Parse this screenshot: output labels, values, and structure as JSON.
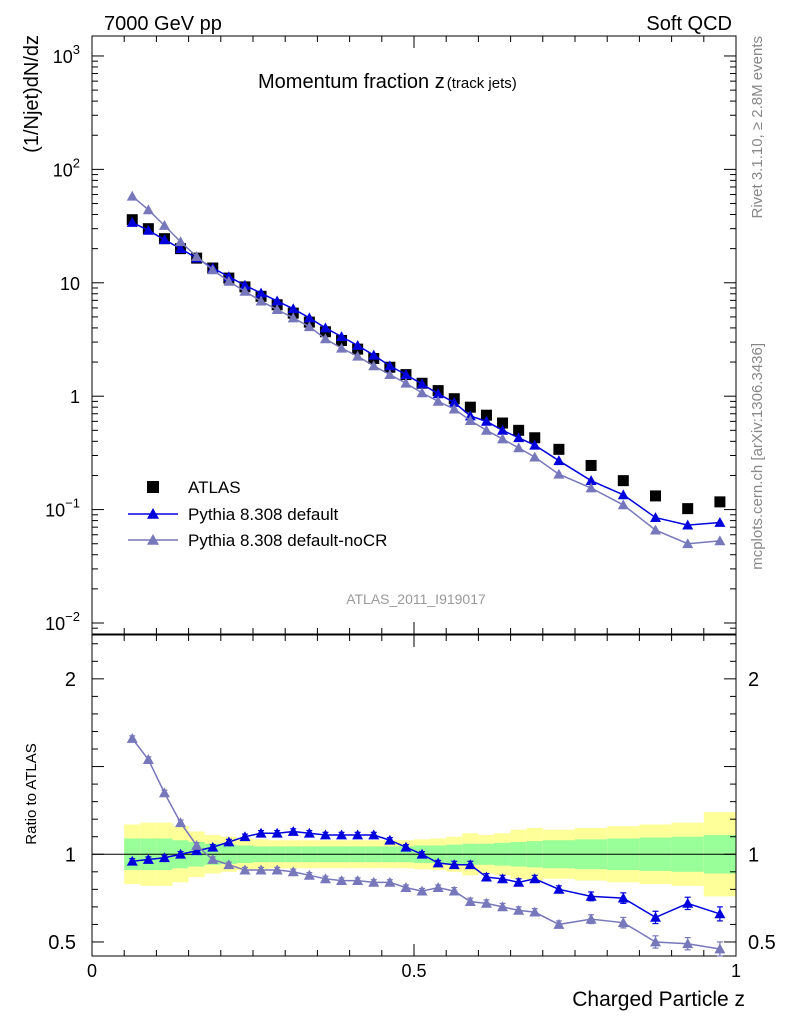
{
  "header": {
    "left": "7000 GeV pp",
    "right": "Soft QCD"
  },
  "side": {
    "top": "Rivet 3.1.10, ≥ 2.8M events",
    "bottom": "mcplots.cern.ch [arXiv:1306.3436]"
  },
  "analysis_tag": "ATLAS_2011_I919017",
  "chart_data": [
    {
      "type": "scatter",
      "panel": "main",
      "title": "Momentum fraction z",
      "title_sub": "(track jets)",
      "ylabel": "(1/Njet)dN/dz",
      "xlabel": "",
      "log_y": true,
      "xlim": [
        0,
        1
      ],
      "ylim": [
        0.008,
        1500
      ],
      "y_ticks": [
        {
          "v": 0.01,
          "base": "10",
          "exp": "−2"
        },
        {
          "v": 0.1,
          "base": "10",
          "exp": "−1"
        },
        {
          "v": 1,
          "base": "1",
          "exp": ""
        },
        {
          "v": 10,
          "base": "10",
          "exp": ""
        },
        {
          "v": 100,
          "base": "10",
          "exp": "2"
        },
        {
          "v": 1000,
          "base": "10",
          "exp": "3"
        }
      ],
      "legend": {
        "position": "lower-left"
      },
      "x": [
        0.0625,
        0.0875,
        0.1125,
        0.1375,
        0.1625,
        0.1875,
        0.2125,
        0.2375,
        0.2625,
        0.2875,
        0.3125,
        0.3375,
        0.3625,
        0.3875,
        0.4125,
        0.4375,
        0.4625,
        0.4875,
        0.5125,
        0.5375,
        0.5625,
        0.5875,
        0.6125,
        0.6375,
        0.6625,
        0.6875,
        0.725,
        0.775,
        0.825,
        0.875,
        0.925,
        0.975
      ],
      "series": [
        {
          "name": "ATLAS",
          "color": "#000000",
          "marker": "square",
          "values": [
            36,
            30,
            24.5,
            20,
            16.5,
            13.5,
            11,
            9.2,
            7.6,
            6.4,
            5.4,
            4.5,
            3.7,
            3.1,
            2.6,
            2.15,
            1.8,
            1.55,
            1.3,
            1.12,
            0.95,
            0.8,
            0.68,
            0.58,
            0.5,
            0.43,
            0.34,
            0.245,
            0.18,
            0.132,
            0.102,
            0.117
          ]
        },
        {
          "name": "Pythia 8.308 default",
          "color": "#0000dd",
          "marker": "triangle",
          "values": [
            34,
            29,
            24,
            20,
            16.5,
            13.5,
            11.3,
            9.5,
            8.1,
            6.9,
            5.9,
            4.9,
            4,
            3.35,
            2.8,
            2.3,
            1.85,
            1.55,
            1.28,
            1.05,
            0.88,
            0.67,
            0.6,
            0.5,
            0.43,
            0.37,
            0.27,
            0.18,
            0.135,
            0.085,
            0.073,
            0.077
          ]
        },
        {
          "name": "Pythia 8.308 default-noCR",
          "color": "#7777bb",
          "marker": "triangle",
          "values": [
            58,
            44,
            32,
            23,
            17,
            13,
            10.3,
            8.4,
            6.9,
            5.8,
            4.9,
            4.1,
            3.2,
            2.65,
            2.25,
            1.85,
            1.55,
            1.3,
            1.07,
            0.9,
            0.77,
            0.61,
            0.5,
            0.42,
            0.35,
            0.29,
            0.205,
            0.155,
            0.11,
            0.066,
            0.05,
            0.053
          ]
        }
      ]
    },
    {
      "type": "line",
      "panel": "ratio",
      "ylabel": "Ratio to ATLAS",
      "xlabel": "Charged Particle z",
      "xlim": [
        0,
        1
      ],
      "ylim": [
        0.42,
        2.25
      ],
      "x_ticks": [
        {
          "v": 0,
          "label": "0"
        },
        {
          "v": 0.5,
          "label": "0.5"
        },
        {
          "v": 1,
          "label": "1"
        }
      ],
      "y_ticks": [
        {
          "v": 0.5,
          "label": "0.5"
        },
        {
          "v": 1,
          "label": "1"
        },
        {
          "v": 2,
          "label": "2"
        }
      ],
      "band_edges": [
        0.05,
        0.075,
        0.1,
        0.125,
        0.15,
        0.175,
        0.2,
        0.225,
        0.25,
        0.275,
        0.3,
        0.325,
        0.35,
        0.375,
        0.4,
        0.425,
        0.45,
        0.475,
        0.5,
        0.525,
        0.55,
        0.575,
        0.6,
        0.625,
        0.65,
        0.675,
        0.7,
        0.75,
        0.8,
        0.85,
        0.9,
        0.95,
        1.0
      ],
      "band_inner": [
        0.09,
        0.09,
        0.09,
        0.08,
        0.07,
        0.06,
        0.055,
        0.05,
        0.045,
        0.045,
        0.045,
        0.045,
        0.045,
        0.045,
        0.045,
        0.045,
        0.045,
        0.045,
        0.05,
        0.05,
        0.055,
        0.06,
        0.06,
        0.065,
        0.07,
        0.075,
        0.08,
        0.085,
        0.09,
        0.095,
        0.1,
        0.11
      ],
      "band_outer": [
        0.17,
        0.18,
        0.18,
        0.16,
        0.13,
        0.11,
        0.1,
        0.09,
        0.085,
        0.08,
        0.08,
        0.08,
        0.08,
        0.08,
        0.08,
        0.08,
        0.08,
        0.08,
        0.085,
        0.09,
        0.1,
        0.12,
        0.11,
        0.12,
        0.14,
        0.15,
        0.14,
        0.15,
        0.16,
        0.17,
        0.18,
        0.24
      ],
      "series": [
        {
          "name": "Pythia 8.308 default",
          "color": "#0000dd",
          "values": [
            0.96,
            0.97,
            0.98,
            1.0,
            1.02,
            1.04,
            1.07,
            1.1,
            1.12,
            1.12,
            1.13,
            1.12,
            1.11,
            1.11,
            1.11,
            1.11,
            1.08,
            1.04,
            1.0,
            0.95,
            0.94,
            0.94,
            0.87,
            0.86,
            0.84,
            0.86,
            0.8,
            0.76,
            0.75,
            0.64,
            0.72,
            0.66
          ],
          "err": [
            0.015,
            0.015,
            0.015,
            0.015,
            0.015,
            0.015,
            0.015,
            0.015,
            0.015,
            0.015,
            0.015,
            0.015,
            0.015,
            0.015,
            0.015,
            0.015,
            0.015,
            0.015,
            0.015,
            0.015,
            0.02,
            0.02,
            0.02,
            0.02,
            0.02,
            0.02,
            0.02,
            0.025,
            0.03,
            0.035,
            0.035,
            0.04
          ]
        },
        {
          "name": "Pythia 8.308 default-noCR",
          "color": "#7777bb",
          "values": [
            1.66,
            1.54,
            1.35,
            1.18,
            1.05,
            0.97,
            0.94,
            0.91,
            0.91,
            0.91,
            0.9,
            0.88,
            0.86,
            0.85,
            0.85,
            0.84,
            0.84,
            0.81,
            0.79,
            0.81,
            0.79,
            0.73,
            0.72,
            0.7,
            0.68,
            0.67,
            0.6,
            0.63,
            0.61,
            0.5,
            0.49,
            0.46
          ],
          "err": [
            0.015,
            0.015,
            0.015,
            0.015,
            0.015,
            0.015,
            0.015,
            0.015,
            0.015,
            0.015,
            0.015,
            0.015,
            0.015,
            0.015,
            0.015,
            0.015,
            0.015,
            0.015,
            0.015,
            0.015,
            0.02,
            0.02,
            0.02,
            0.02,
            0.02,
            0.02,
            0.02,
            0.025,
            0.03,
            0.035,
            0.035,
            0.04
          ]
        }
      ]
    }
  ]
}
